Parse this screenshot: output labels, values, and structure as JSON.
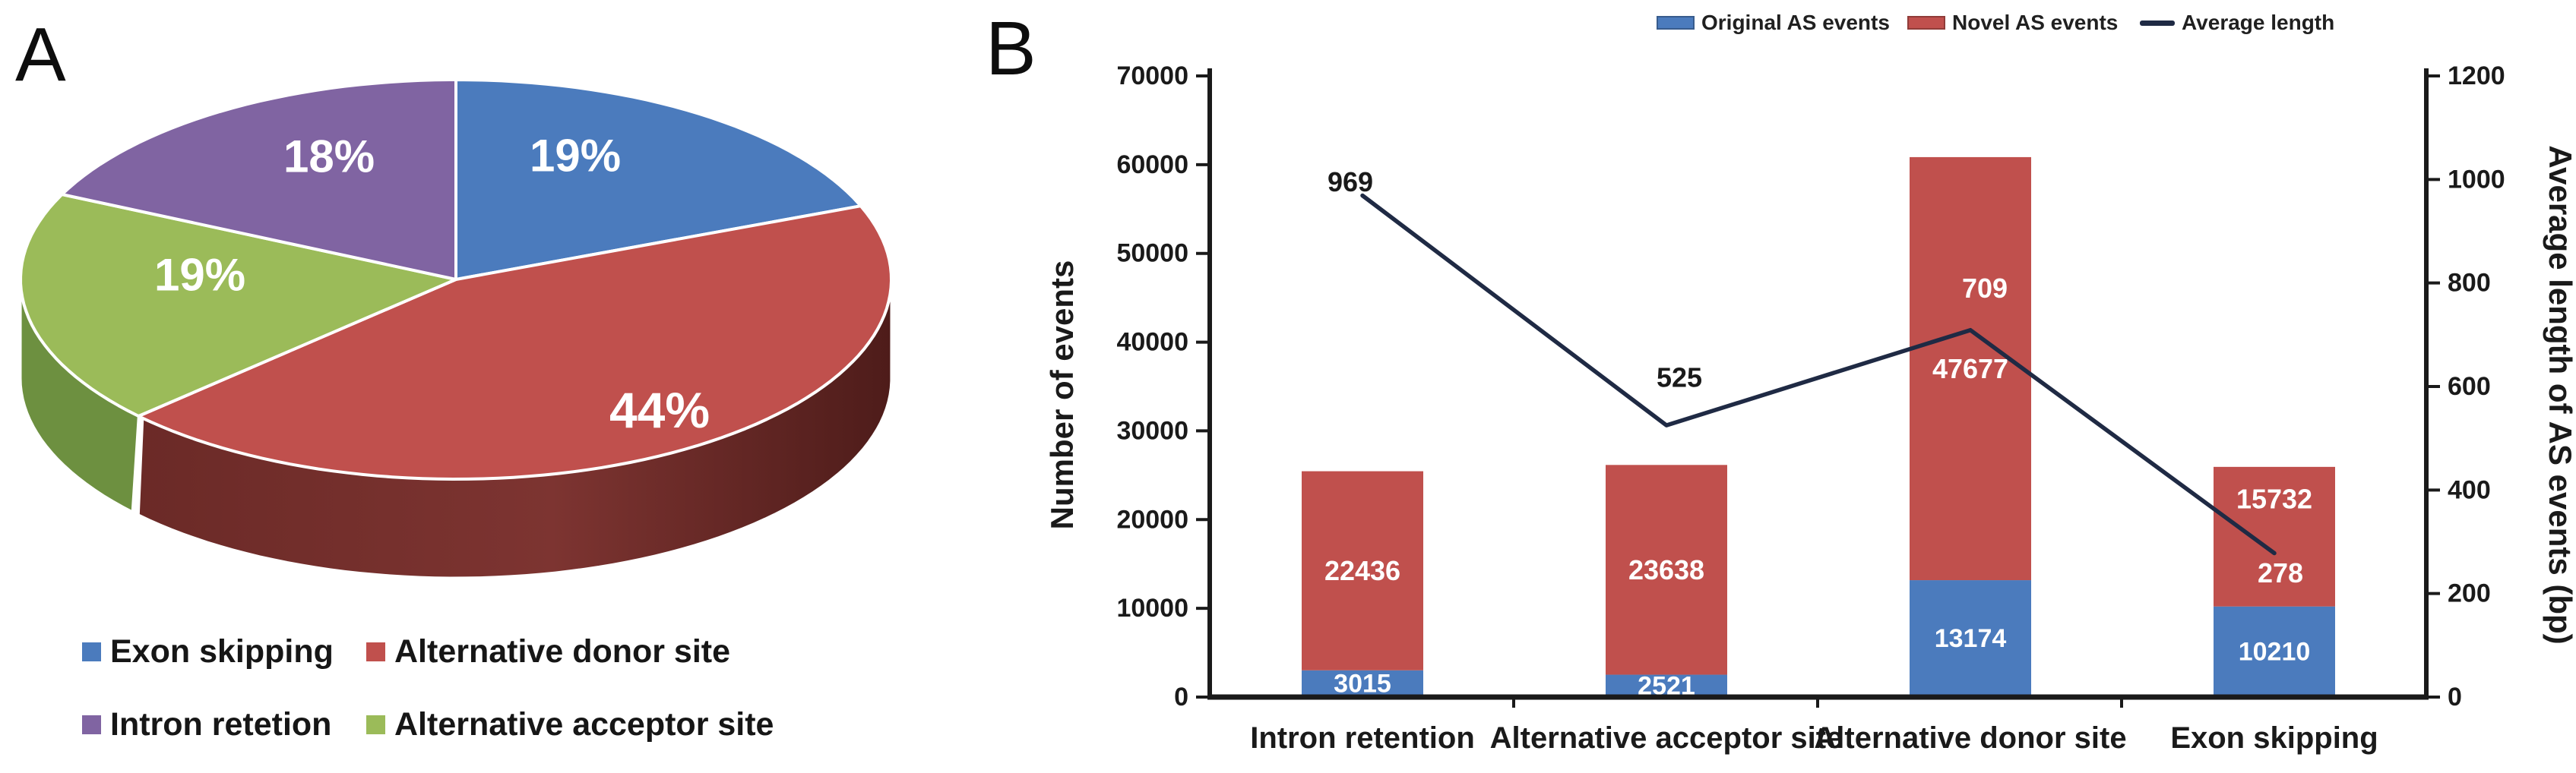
{
  "figure": {
    "panel_a_label": "A",
    "panel_b_label": "B"
  },
  "panel_a": {
    "legend": [
      {
        "label": "Exon skipping",
        "color": "#4b7bbd"
      },
      {
        "label": "Alternative donor site",
        "color": "#c0504d"
      },
      {
        "label": "Intron retetion",
        "color": "#8064a2"
      },
      {
        "label": "Alternative acceptor site",
        "color": "#9bbb59"
      }
    ]
  },
  "panel_b": {
    "legend": [
      {
        "label": "Original AS events",
        "color": "#4b7bbd",
        "marker": "rect"
      },
      {
        "label": "Novel AS events",
        "color": "#c0504d",
        "marker": "rect"
      },
      {
        "label": "Average length",
        "color": "#1f2a44",
        "marker": "line"
      }
    ]
  },
  "chart_data": [
    {
      "type": "pie",
      "style": "3d",
      "title": "",
      "start_angle_deg": 0,
      "direction": "clockwise",
      "slices": [
        {
          "label": "Exon skipping",
          "value_pct": 19,
          "display": "19%",
          "color": "#4b7bbd"
        },
        {
          "label": "Alternative donor site",
          "value_pct": 44,
          "display": "44%",
          "color": "#c0504d",
          "side_color": "#6e2b28"
        },
        {
          "label": "Alternative acceptor site",
          "value_pct": 19,
          "display": "19%",
          "color": "#9bbb59",
          "side_color": "#6d9040"
        },
        {
          "label": "Intron retetion",
          "value_pct": 18,
          "display": "18%",
          "color": "#8064a2"
        }
      ]
    },
    {
      "type": "bar",
      "subtype": "stacked-with-line",
      "title": "",
      "categories": [
        "Intron retention",
        "Alternative acceptor site",
        "Alternative donor site",
        "Exon skipping"
      ],
      "series": [
        {
          "name": "Original AS events",
          "values": [
            3015,
            2521,
            13174,
            10210
          ],
          "color": "#4b7bbd"
        },
        {
          "name": "Novel AS events",
          "values": [
            22436,
            23638,
            47677,
            15732
          ],
          "color": "#c0504d"
        }
      ],
      "line_series": {
        "name": "Average length",
        "values": [
          969,
          525,
          709,
          278
        ],
        "color": "#1f2a44",
        "axis": "right"
      },
      "ylabel": "Number of events",
      "ylim": [
        0,
        70000
      ],
      "ytick_step": 10000,
      "y2label": "Average length of AS events (bp)",
      "y2lim": [
        0,
        1200
      ],
      "y2tick_step": 200,
      "grid": false,
      "legend_position": "top"
    }
  ]
}
